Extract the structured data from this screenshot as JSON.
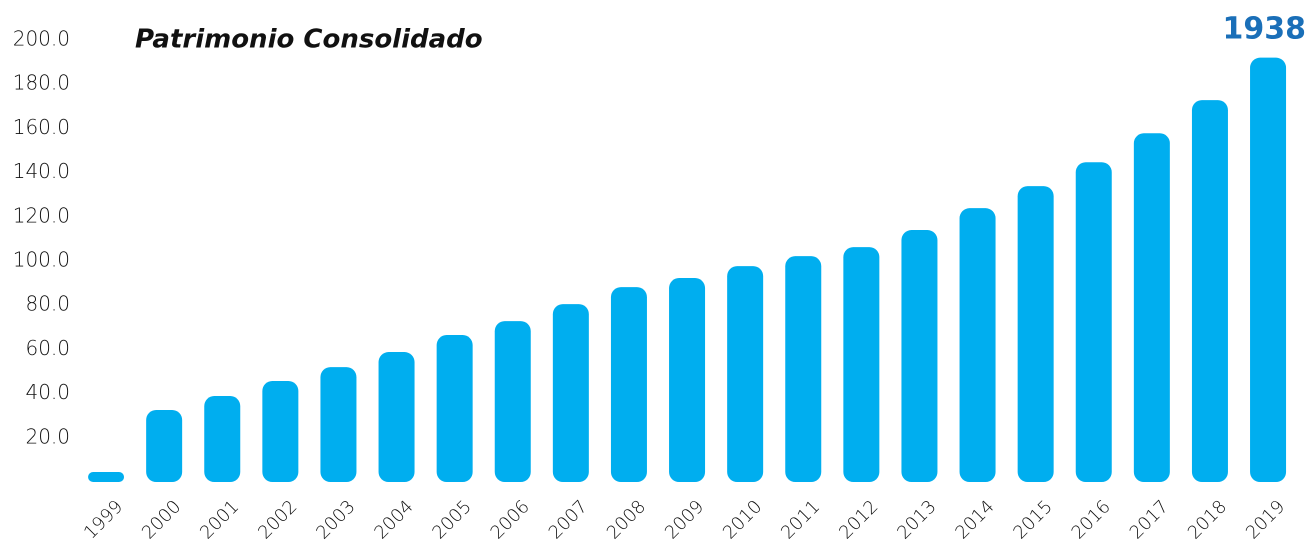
{
  "chart_data": {
    "type": "bar",
    "title": "Patrimonio Consolidado",
    "annotation": "1938",
    "categories": [
      "1999",
      "2000",
      "2001",
      "2002",
      "2003",
      "2004",
      "2005",
      "2006",
      "2007",
      "2008",
      "2009",
      "2010",
      "2011",
      "2012",
      "2013",
      "2014",
      "2015",
      "2016",
      "2017",
      "2018",
      "2019"
    ],
    "values": [
      4.5,
      32.6,
      38.9,
      45.7,
      52,
      58.8,
      66.5,
      72.8,
      80.5,
      88.2,
      92.3,
      97.7,
      102.2,
      106.3,
      114,
      123.9,
      133.9,
      144.7,
      157.8,
      172.8,
      192
    ],
    "color": "#00aeef",
    "ylim": [
      0,
      200
    ],
    "yticks": [
      {
        "value": 20,
        "label": "20.0"
      },
      {
        "value": 40,
        "label": "40.0"
      },
      {
        "value": 60,
        "label": "60.0"
      },
      {
        "value": 80,
        "label": "80.0"
      },
      {
        "value": 100,
        "label": "100.0"
      },
      {
        "value": 120,
        "label": "120.0"
      },
      {
        "value": 140,
        "label": "140.0"
      },
      {
        "value": 160,
        "label": "160.0"
      },
      {
        "value": 180,
        "label": "180.0"
      },
      {
        "value": 200,
        "label": "200.0"
      }
    ],
    "grid": false
  }
}
